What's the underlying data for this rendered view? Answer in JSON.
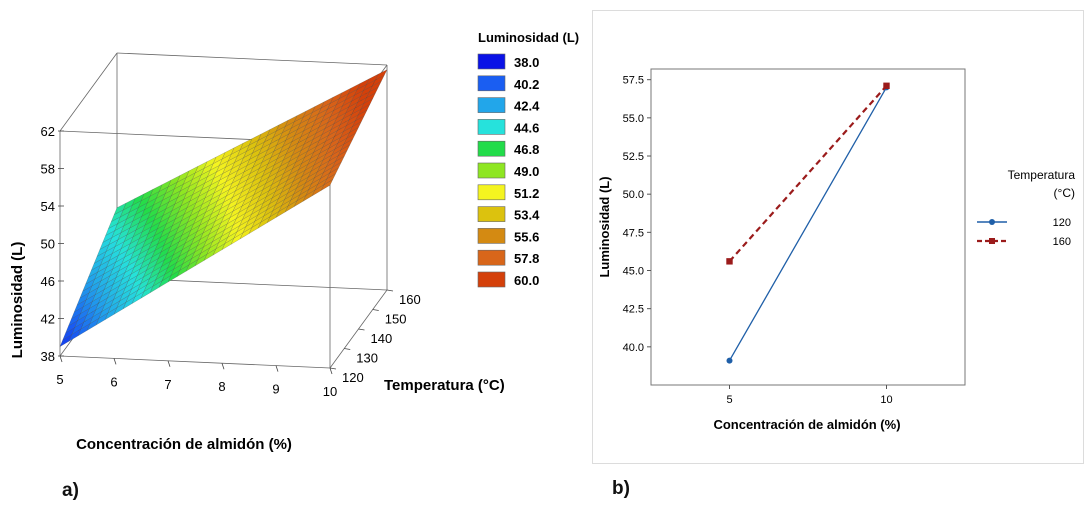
{
  "chart_data": [
    {
      "type": "surface",
      "panel_label": "a)",
      "xlabel": "Concentración de almidón (%)",
      "ylabel": "Temperatura (°C)",
      "zlabel": "Luminosidad (L)",
      "x_ticks": [
        "10",
        "9",
        "8",
        "7",
        "6",
        "5"
      ],
      "y_ticks": [
        "120",
        "130",
        "140",
        "150",
        "160"
      ],
      "z_ticks": [
        "38",
        "42",
        "46",
        "50",
        "54",
        "58",
        "62"
      ],
      "xlim": [
        5,
        10
      ],
      "ylim": [
        120,
        160
      ],
      "zlim": [
        38,
        62
      ],
      "surface_corners": [
        {
          "x": 10,
          "y": 120,
          "z": 57.5
        },
        {
          "x": 10,
          "y": 160,
          "z": 61.5
        },
        {
          "x": 5,
          "y": 160,
          "z": 45.5
        },
        {
          "x": 5,
          "y": 120,
          "z": 39.0
        }
      ],
      "legend": {
        "title": "Luminosidad (L)",
        "entries": [
          {
            "label": "38.0",
            "color": "#0a12e6"
          },
          {
            "label": "40.2",
            "color": "#1a5ef2"
          },
          {
            "label": "42.4",
            "color": "#22a6ea"
          },
          {
            "label": "44.6",
            "color": "#26e2dc"
          },
          {
            "label": "46.8",
            "color": "#22dc4a"
          },
          {
            "label": "49.0",
            "color": "#8ee622"
          },
          {
            "label": "51.2",
            "color": "#f4f420"
          },
          {
            "label": "53.4",
            "color": "#dcc20e"
          },
          {
            "label": "55.6",
            "color": "#d48a12"
          },
          {
            "label": "57.8",
            "color": "#d8661a"
          },
          {
            "label": "60.0",
            "color": "#d4400a"
          }
        ]
      }
    },
    {
      "type": "line",
      "panel_label": "b)",
      "xlabel": "Concentración de almidón (%)",
      "ylabel": "Luminosidad (L)",
      "categories": [
        "5",
        "10"
      ],
      "x": [
        5,
        10
      ],
      "xlim": [
        2.5,
        12.5
      ],
      "ylim": [
        37.5,
        58.2
      ],
      "y_ticks": [
        "40.0",
        "42.5",
        "45.0",
        "47.5",
        "50.0",
        "52.5",
        "55.0",
        "57.5"
      ],
      "y_tick_values": [
        40.0,
        42.5,
        45.0,
        47.5,
        50.0,
        52.5,
        55.0,
        57.5
      ],
      "legend_title": "Temperatura (°C)",
      "legend_placement": "right",
      "grid": false,
      "series": [
        {
          "name": "120",
          "values": [
            39.1,
            57.0
          ],
          "color": "#1f5fa8",
          "dash": "solid",
          "marker": "circle"
        },
        {
          "name": "160",
          "values": [
            45.6,
            57.1
          ],
          "color": "#9b1b1b",
          "dash": "dashed",
          "marker": "square"
        }
      ]
    }
  ]
}
